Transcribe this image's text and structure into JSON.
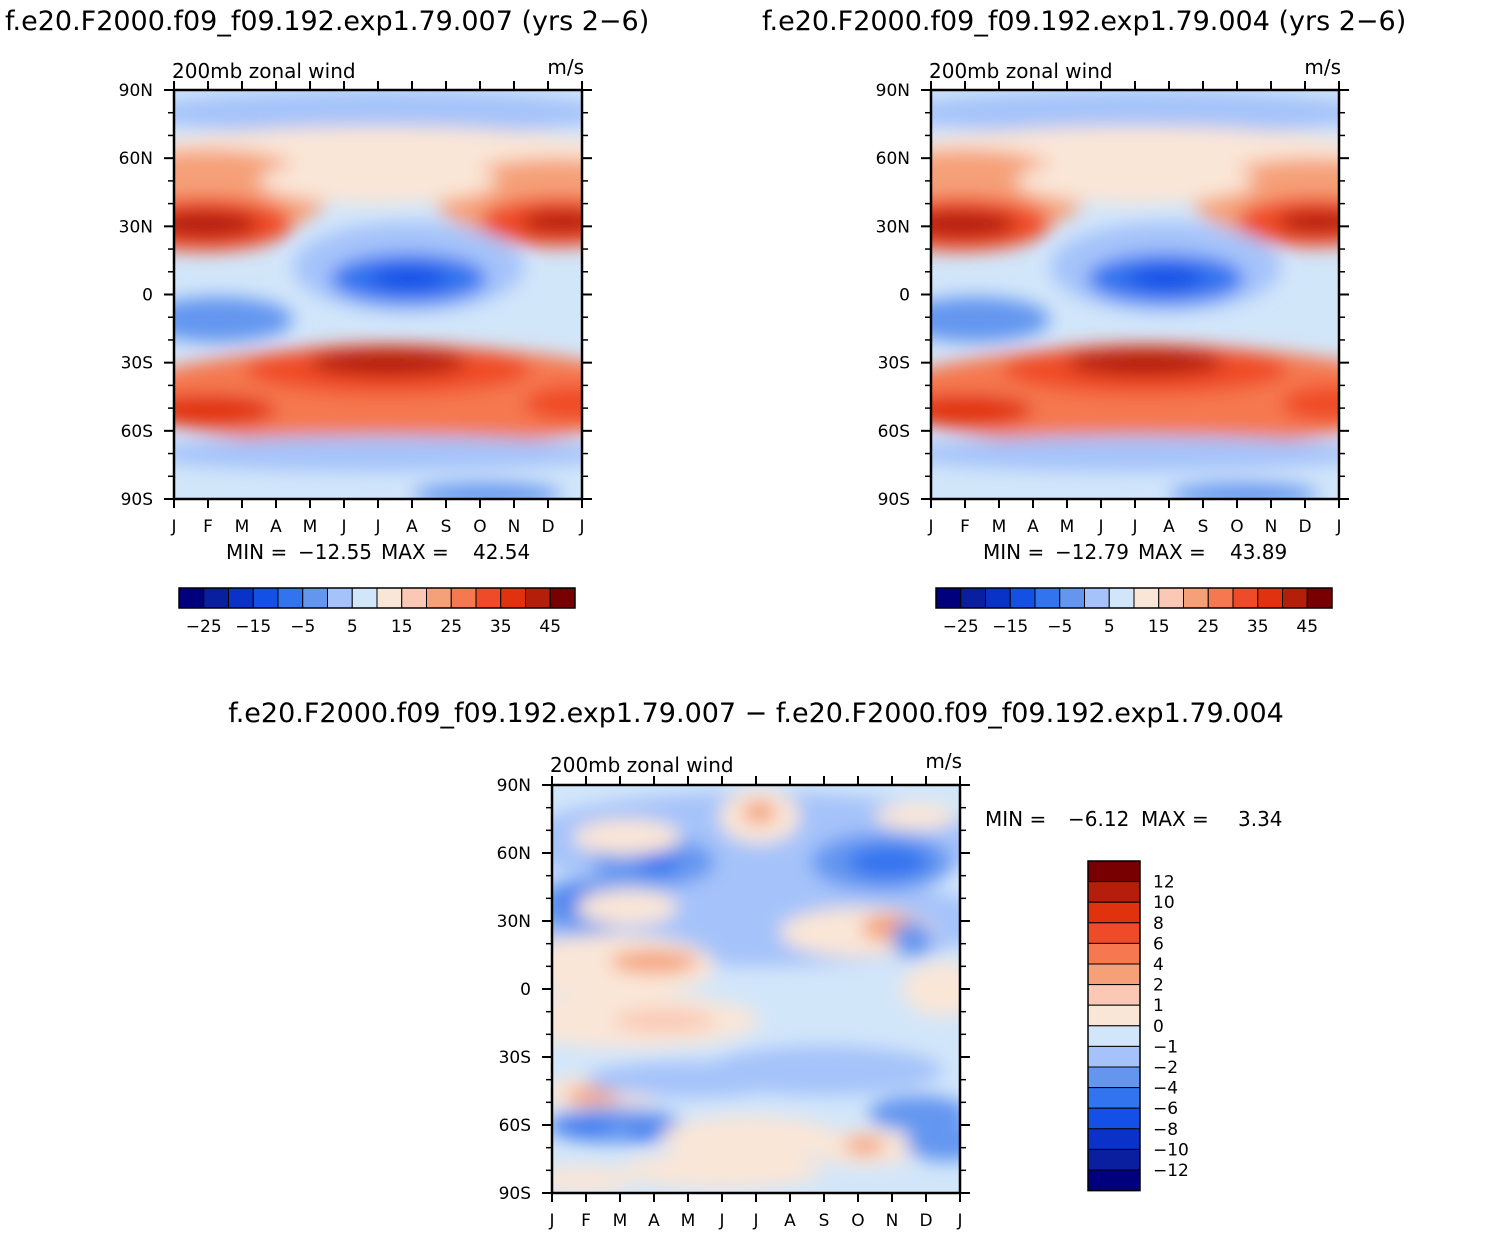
{
  "chart_data": [
    {
      "type": "heatmap",
      "title": "f.e20.F2000.f09_f09.192.exp1.79.007 (yrs 2−6)",
      "left_label": "200mb zonal wind",
      "right_label": "m/s",
      "x_ticks": [
        "J",
        "F",
        "M",
        "A",
        "M",
        "J",
        "J",
        "A",
        "S",
        "O",
        "N",
        "D",
        "J"
      ],
      "y_ticks": [
        "90N",
        "60N",
        "30N",
        "0",
        "30S",
        "60S",
        "90S"
      ],
      "xlim": [
        0,
        12
      ],
      "ylim": [
        -90,
        90
      ],
      "min_label": "MIN =",
      "min_value": "−12.55",
      "max_label": "MAX =",
      "max_value": "42.54",
      "colorbar_ticks": [
        "−25",
        "−15",
        "−5",
        "5",
        "15",
        "25",
        "35",
        "45"
      ],
      "colorbar_levels": [
        -30,
        -25,
        -20,
        -15,
        -10,
        -5,
        0,
        5,
        10,
        15,
        20,
        25,
        30,
        35,
        40,
        45
      ],
      "field": "reference_jet_ensemble"
    },
    {
      "type": "heatmap",
      "title": "f.e20.F2000.f09_f09.192.exp1.79.004 (yrs 2−6)",
      "left_label": "200mb zonal wind",
      "right_label": "m/s",
      "x_ticks": [
        "J",
        "F",
        "M",
        "A",
        "M",
        "J",
        "J",
        "A",
        "S",
        "O",
        "N",
        "D",
        "J"
      ],
      "y_ticks": [
        "90N",
        "60N",
        "30N",
        "0",
        "30S",
        "60S",
        "90S"
      ],
      "xlim": [
        0,
        12
      ],
      "ylim": [
        -90,
        90
      ],
      "min_label": "MIN =",
      "min_value": "−12.79",
      "max_label": "MAX =",
      "max_value": "43.89",
      "colorbar_ticks": [
        "−25",
        "−15",
        "−5",
        "5",
        "15",
        "25",
        "35",
        "45"
      ],
      "colorbar_levels": [
        -30,
        -25,
        -20,
        -15,
        -10,
        -5,
        0,
        5,
        10,
        15,
        20,
        25,
        30,
        35,
        40,
        45
      ],
      "field": "reference_jet_ensemble"
    },
    {
      "type": "heatmap",
      "title": "f.e20.F2000.f09_f09.192.exp1.79.007 − f.e20.F2000.f09_f09.192.exp1.79.004",
      "left_label": "200mb zonal wind",
      "right_label": "m/s",
      "x_ticks": [
        "J",
        "F",
        "M",
        "A",
        "M",
        "J",
        "J",
        "A",
        "S",
        "O",
        "N",
        "D",
        "J"
      ],
      "y_ticks": [
        "90N",
        "60N",
        "30N",
        "0",
        "30S",
        "60S",
        "90S"
      ],
      "xlim": [
        0,
        12
      ],
      "ylim": [
        -90,
        90
      ],
      "min_label": "MIN =",
      "min_value": "−6.12",
      "max_label": "MAX =",
      "max_value": "3.34",
      "colorbar_ticks": [
        "12",
        "10",
        "8",
        "6",
        "4",
        "2",
        "1",
        "0",
        "−1",
        "−2",
        "−4",
        "−6",
        "−8",
        "−10",
        "−12"
      ],
      "colorbar_levels": [
        -12,
        -10,
        -8,
        -6,
        -4,
        -2,
        -1,
        0,
        1,
        2,
        4,
        6,
        8,
        10,
        12
      ],
      "field": "difference"
    }
  ],
  "colors": {
    "scale": [
      "#00007f",
      "#0a1ea0",
      "#0a32c8",
      "#1450e6",
      "#3273f0",
      "#6496f0",
      "#a5c3fa",
      "#d2e6fa",
      "#fae6d7",
      "#fac8b4",
      "#f5a078",
      "#f57850",
      "#f04b28",
      "#e1320f",
      "#b41e0a",
      "#780000"
    ]
  }
}
